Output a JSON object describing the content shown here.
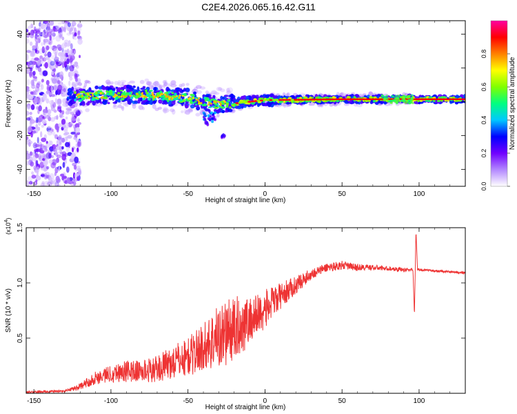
{
  "title": "C2E4.2026.065.16.42.G11",
  "chart_data": [
    {
      "type": "heatmap",
      "title": "C2E4.2026.065.16.42.G11",
      "xlabel": "Height of straight line (km)",
      "ylabel": "Frequency (Hz)",
      "xlim": [
        -155,
        130
      ],
      "ylim": [
        -50,
        48
      ],
      "x_ticks": [
        -150,
        -100,
        -50,
        0,
        50,
        100
      ],
      "y_ticks": [
        -40,
        -20,
        0,
        20,
        40
      ],
      "colorbar": {
        "label": "Normalized spectral amplitude",
        "range": [
          0.0,
          1.0
        ],
        "ticks": [
          0.0,
          0.2,
          0.4,
          0.6,
          0.8
        ],
        "colormap": [
          "#ffffff",
          "#b388ff",
          "#7000ff",
          "#0000ff",
          "#00c8ff",
          "#00ff80",
          "#80ff00",
          "#ffff00",
          "#ff8000",
          "#ff0000",
          "#ff00a0"
        ]
      },
      "features": {
        "noise_region_x": [
          -155,
          -120
        ],
        "band_center_hz": [
          {
            "x": -128,
            "f": 3
          },
          {
            "x": -100,
            "f": 4
          },
          {
            "x": -75,
            "f": 4
          },
          {
            "x": -50,
            "f": 2
          },
          {
            "x": -35,
            "f": -1
          },
          {
            "x": -20,
            "f": -1
          },
          {
            "x": 0,
            "f": 1
          },
          {
            "x": 50,
            "f": 1.5
          },
          {
            "x": 130,
            "f": 1.5
          }
        ],
        "tail_points": [
          {
            "x": -38,
            "f": -12
          },
          {
            "x": -27,
            "f": -20
          }
        ]
      }
    },
    {
      "type": "line",
      "xlabel": "Height of straight line (km)",
      "ylabel": "SNR (10 * v/v)",
      "multiplier": "(x10^4)",
      "multiplier_base": "(x10",
      "multiplier_exp": "4",
      "multiplier_close": ")",
      "xlim": [
        -155,
        130
      ],
      "ylim": [
        0.0,
        1.5
      ],
      "x_ticks": [
        -150,
        -100,
        -50,
        0,
        50,
        100
      ],
      "y_ticks": [
        0.5,
        1.0,
        1.5
      ],
      "y_tick_labels": [
        "0.5",
        "1.0",
        "1.5"
      ],
      "color": "#ee3333",
      "series": [
        {
          "name": "SNR",
          "envelope_x": [
            -155,
            -130,
            -120,
            -110,
            -100,
            -90,
            -80,
            -70,
            -60,
            -50,
            -40,
            -30,
            -20,
            -10,
            0,
            10,
            20,
            30,
            40,
            50,
            60,
            70,
            80,
            90,
            96,
            97,
            98,
            99,
            100,
            110,
            120,
            130
          ],
          "envelope_mean": [
            0.01,
            0.02,
            0.06,
            0.14,
            0.18,
            0.2,
            0.2,
            0.22,
            0.28,
            0.33,
            0.42,
            0.52,
            0.58,
            0.66,
            0.76,
            0.88,
            0.98,
            1.08,
            1.14,
            1.16,
            1.14,
            1.14,
            1.13,
            1.12,
            1.12,
            0.7,
            1.48,
            1.12,
            1.12,
            1.11,
            1.1,
            1.09
          ],
          "envelope_spread": [
            0.01,
            0.01,
            0.03,
            0.06,
            0.08,
            0.1,
            0.1,
            0.12,
            0.15,
            0.18,
            0.22,
            0.3,
            0.3,
            0.22,
            0.18,
            0.12,
            0.08,
            0.05,
            0.04,
            0.04,
            0.03,
            0.025,
            0.02,
            0.02,
            0.01,
            0.0,
            0.0,
            0.01,
            0.01,
            0.01,
            0.01,
            0.01
          ]
        }
      ]
    }
  ]
}
